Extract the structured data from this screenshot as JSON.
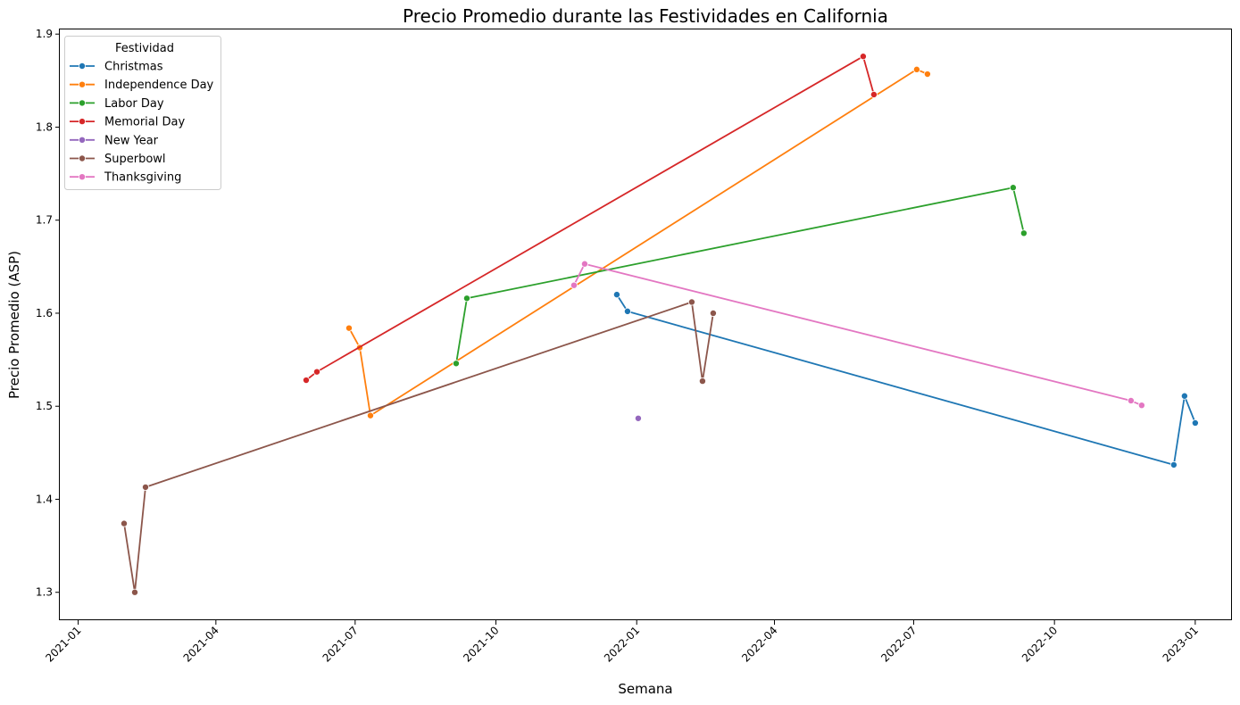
{
  "chart_data": {
    "type": "line",
    "title": "Precio Promedio durante las Festividades en California",
    "xlabel": "Semana",
    "ylabel": "Precio Promedio (ASP)",
    "x_type": "date",
    "xlim": [
      "2020-12-20",
      "2023-01-25"
    ],
    "ylim": [
      1.27,
      1.905
    ],
    "x_ticks": [
      "2021-01-01",
      "2021-04-01",
      "2021-07-01",
      "2021-10-01",
      "2022-01-01",
      "2022-04-01",
      "2022-07-01",
      "2022-10-01",
      "2023-01-01"
    ],
    "x_tick_labels": [
      "2021-01",
      "2021-04",
      "2021-07",
      "2021-10",
      "2022-01",
      "2022-04",
      "2022-07",
      "2022-10",
      "2023-01"
    ],
    "y_ticks": [
      1.3,
      1.4,
      1.5,
      1.6,
      1.7,
      1.8,
      1.9
    ],
    "y_tick_labels": [
      "1.3",
      "1.4",
      "1.5",
      "1.6",
      "1.7",
      "1.8",
      "1.9"
    ],
    "grid": false,
    "legend_title": "Festividad",
    "legend_position": "top-left",
    "series": [
      {
        "name": "Christmas",
        "color": "#1f77b4",
        "points": [
          {
            "x": "2021-12-19",
            "y": 1.62
          },
          {
            "x": "2021-12-26",
            "y": 1.602
          },
          {
            "x": "2022-12-18",
            "y": 1.437
          },
          {
            "x": "2022-12-25",
            "y": 1.511
          },
          {
            "x": "2023-01-01",
            "y": 1.482
          }
        ]
      },
      {
        "name": "Independence Day",
        "color": "#ff7f0e",
        "points": [
          {
            "x": "2021-06-27",
            "y": 1.584
          },
          {
            "x": "2021-07-04",
            "y": 1.563
          },
          {
            "x": "2021-07-11",
            "y": 1.49
          },
          {
            "x": "2022-07-03",
            "y": 1.862
          },
          {
            "x": "2022-07-10",
            "y": 1.857
          }
        ]
      },
      {
        "name": "Labor Day",
        "color": "#2ca02c",
        "points": [
          {
            "x": "2021-09-05",
            "y": 1.546
          },
          {
            "x": "2021-09-12",
            "y": 1.616
          },
          {
            "x": "2022-09-04",
            "y": 1.735
          },
          {
            "x": "2022-09-11",
            "y": 1.686
          }
        ]
      },
      {
        "name": "Memorial Day",
        "color": "#d62728",
        "points": [
          {
            "x": "2021-05-30",
            "y": 1.528
          },
          {
            "x": "2021-06-06",
            "y": 1.537
          },
          {
            "x": "2022-05-29",
            "y": 1.876
          },
          {
            "x": "2022-06-05",
            "y": 1.835
          }
        ]
      },
      {
        "name": "New Year",
        "color": "#9467bd",
        "points": [
          {
            "x": "2022-01-02",
            "y": 1.487
          }
        ]
      },
      {
        "name": "Superbowl",
        "color": "#8c564b",
        "points": [
          {
            "x": "2021-01-31",
            "y": 1.374
          },
          {
            "x": "2021-02-07",
            "y": 1.3
          },
          {
            "x": "2021-02-14",
            "y": 1.413
          },
          {
            "x": "2022-02-06",
            "y": 1.612
          },
          {
            "x": "2022-02-13",
            "y": 1.527
          },
          {
            "x": "2022-02-20",
            "y": 1.6
          }
        ]
      },
      {
        "name": "Thanksgiving",
        "color": "#e377c2",
        "points": [
          {
            "x": "2021-11-21",
            "y": 1.63
          },
          {
            "x": "2021-11-28",
            "y": 1.653
          },
          {
            "x": "2022-11-20",
            "y": 1.506
          },
          {
            "x": "2022-11-27",
            "y": 1.501
          }
        ]
      }
    ]
  }
}
